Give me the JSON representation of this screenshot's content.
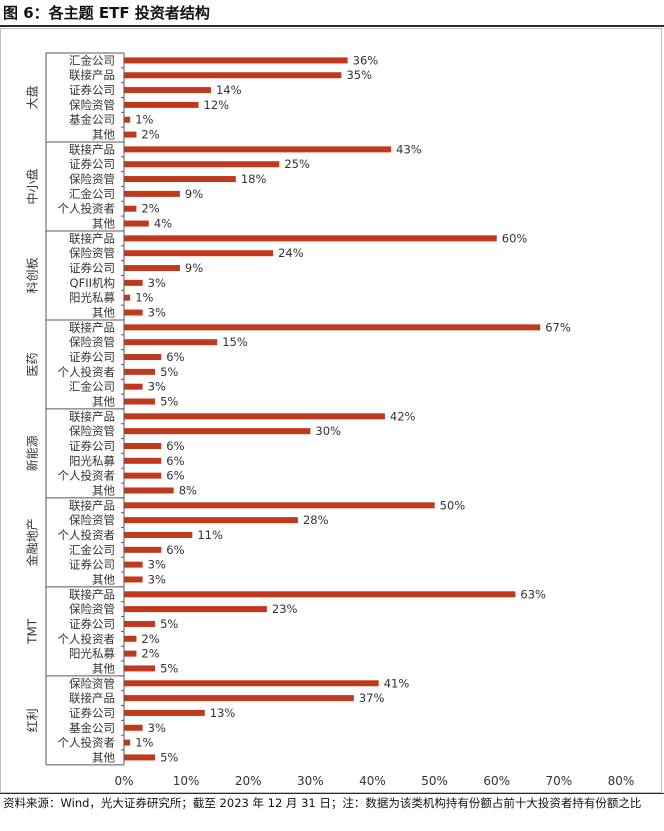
{
  "title": "图 6：各主题 ETF 投资者结构",
  "note": "资料来源：Wind，光大证券研究所；截至 2023 年 12 月 31 日；注：数据为该类机构持有份额占前十大投资者持有份额之比",
  "colors": {
    "bar": "#c0391d",
    "axis": "#595959",
    "text": "#333333"
  },
  "chart_data": {
    "type": "bar",
    "orientation": "horizontal",
    "xlim": [
      0,
      80
    ],
    "xticks": [
      "0%",
      "10%",
      "20%",
      "30%",
      "40%",
      "50%",
      "60%",
      "70%",
      "80%"
    ],
    "value_suffix": "%",
    "groups": [
      {
        "name": "大盘",
        "items": [
          {
            "label": "汇金公司",
            "value": 36
          },
          {
            "label": "联接产品",
            "value": 35
          },
          {
            "label": "证券公司",
            "value": 14
          },
          {
            "label": "保险资管",
            "value": 12
          },
          {
            "label": "基金公司",
            "value": 1
          },
          {
            "label": "其他",
            "value": 2
          }
        ]
      },
      {
        "name": "中小盘",
        "items": [
          {
            "label": "联接产品",
            "value": 43
          },
          {
            "label": "证券公司",
            "value": 25
          },
          {
            "label": "保险资管",
            "value": 18
          },
          {
            "label": "汇金公司",
            "value": 9
          },
          {
            "label": "个人投资者",
            "value": 2
          },
          {
            "label": "其他",
            "value": 4
          }
        ]
      },
      {
        "name": "科创板",
        "items": [
          {
            "label": "联接产品",
            "value": 60
          },
          {
            "label": "保险资管",
            "value": 24
          },
          {
            "label": "证券公司",
            "value": 9
          },
          {
            "label": "QFII机构",
            "value": 3
          },
          {
            "label": "阳光私募",
            "value": 1
          },
          {
            "label": "其他",
            "value": 3
          }
        ]
      },
      {
        "name": "医药",
        "items": [
          {
            "label": "联接产品",
            "value": 67
          },
          {
            "label": "保险资管",
            "value": 15
          },
          {
            "label": "证券公司",
            "value": 6
          },
          {
            "label": "个人投资者",
            "value": 5
          },
          {
            "label": "汇金公司",
            "value": 3
          },
          {
            "label": "其他",
            "value": 5
          }
        ]
      },
      {
        "name": "新能源",
        "items": [
          {
            "label": "联接产品",
            "value": 42
          },
          {
            "label": "保险资管",
            "value": 30
          },
          {
            "label": "证券公司",
            "value": 6
          },
          {
            "label": "阳光私募",
            "value": 6
          },
          {
            "label": "个人投资者",
            "value": 6
          },
          {
            "label": "其他",
            "value": 8
          }
        ]
      },
      {
        "name": "金融地产",
        "items": [
          {
            "label": "联接产品",
            "value": 50
          },
          {
            "label": "保险资管",
            "value": 28
          },
          {
            "label": "个人投资者",
            "value": 11
          },
          {
            "label": "汇金公司",
            "value": 6
          },
          {
            "label": "证券公司",
            "value": 3
          },
          {
            "label": "其他",
            "value": 3
          }
        ]
      },
      {
        "name": "TMT",
        "items": [
          {
            "label": "联接产品",
            "value": 63
          },
          {
            "label": "保险资管",
            "value": 23
          },
          {
            "label": "证券公司",
            "value": 5
          },
          {
            "label": "个人投资者",
            "value": 2
          },
          {
            "label": "阳光私募",
            "value": 2
          },
          {
            "label": "其他",
            "value": 5
          }
        ]
      },
      {
        "name": "红利",
        "items": [
          {
            "label": "保险资管",
            "value": 41
          },
          {
            "label": "联接产品",
            "value": 37
          },
          {
            "label": "证券公司",
            "value": 13
          },
          {
            "label": "基金公司",
            "value": 3
          },
          {
            "label": "个人投资者",
            "value": 1
          },
          {
            "label": "其他",
            "value": 5
          }
        ]
      }
    ]
  }
}
